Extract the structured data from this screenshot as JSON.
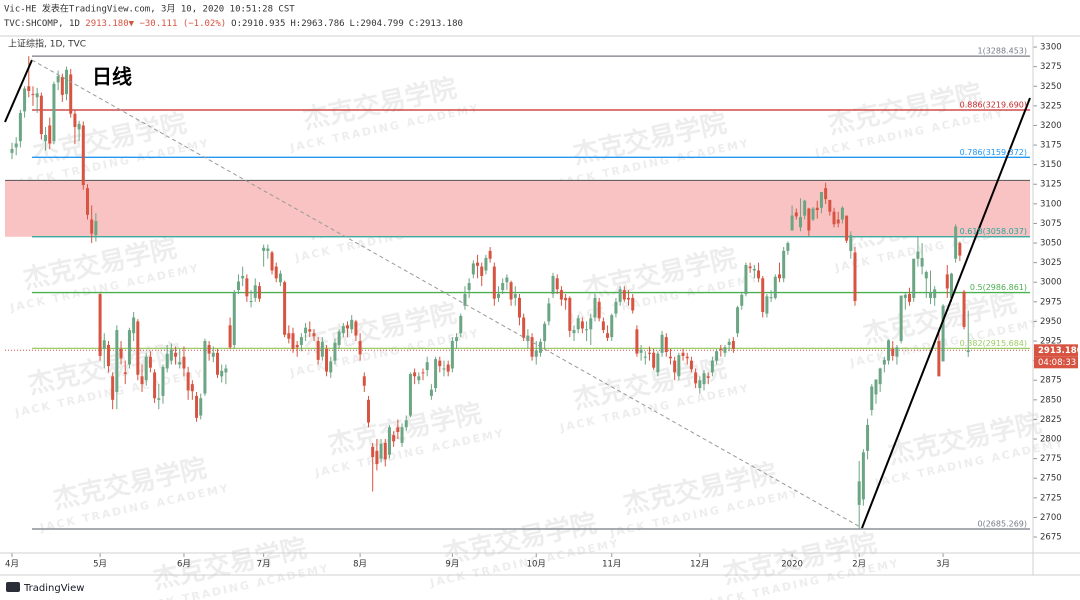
{
  "chart_data": {
    "type": "candlestick",
    "header": {
      "author": "Vic-HE 发表在TradingView.com, 3月 10, 2020 10:51:28 CST",
      "symbol": "TVC:SHCOMP, 1D",
      "quote": "2913.180▼ −30.111 (−1.02%)",
      "ohlc": [
        "O:2910.935",
        "H:2963.786",
        "L:2904.799",
        "C:2913.180"
      ]
    },
    "title": "上证综指, 1D, TVC",
    "annotation": "日线",
    "watermark": {
      "cn": "杰克交易学院",
      "en": "JACK TRADING ACADEMY"
    },
    "brand": "TradingView",
    "up_color": "#6ba583",
    "down_color": "#d75442",
    "ylim": [
      2661,
      3309
    ],
    "yticks": [
      3300,
      3275,
      3250,
      3225,
      3200,
      3175,
      3150,
      3125,
      3100,
      3075,
      3050,
      3025,
      3000,
      2975,
      2950,
      2925,
      2900,
      2875,
      2850,
      2825,
      2800,
      2775,
      2750,
      2725,
      2700,
      2675
    ],
    "xticks": [
      {
        "value": 0,
        "label": "4月"
      },
      {
        "value": 21,
        "label": "5月"
      },
      {
        "value": 41,
        "label": "6月"
      },
      {
        "value": 60,
        "label": "7月"
      },
      {
        "value": 83,
        "label": "8月"
      },
      {
        "value": 105,
        "label": "9月"
      },
      {
        "value": 125,
        "label": "10月"
      },
      {
        "value": 143,
        "label": "11月"
      },
      {
        "value": 164,
        "label": "12月"
      },
      {
        "value": 186,
        "label": "2020"
      },
      {
        "value": 202,
        "label": "2月"
      },
      {
        "value": 222,
        "label": "3月"
      }
    ],
    "fib_levels": [
      {
        "value": 3288.453,
        "label": "1(3288.453)",
        "color": "#787b86"
      },
      {
        "value": 3219.69,
        "label": "0.886(3219.690)",
        "color": "#c62828"
      },
      {
        "value": 3159.372,
        "label": "0.786(3159.372)",
        "color": "#2196f3"
      },
      {
        "value": 3058.037,
        "label": "0.618(3058.037)",
        "color": "#26a69a"
      },
      {
        "value": 2986.861,
        "label": "0.5(2986.861)",
        "color": "#4caf50"
      },
      {
        "value": 2915.684,
        "label": "0.382(2915.684)",
        "color": "#9ccc65"
      },
      {
        "value": 2685.269,
        "label": "0(2685.269)",
        "color": "#787b86"
      }
    ],
    "zone": {
      "top": 3130,
      "bottom": 3058.037,
      "color": "#f9c3c3"
    },
    "last_price": {
      "value": 2913.18,
      "label": "2913.180"
    },
    "countdown": "04:08:33",
    "candles": [
      [
        3165,
        3178,
        3157,
        3170
      ],
      [
        3172,
        3185,
        3162,
        3177
      ],
      [
        3180,
        3220,
        3172,
        3216
      ],
      [
        3218,
        3250,
        3210,
        3247
      ],
      [
        3250,
        3288.45,
        3236,
        3244
      ],
      [
        3240,
        3250,
        3225,
        3239
      ],
      [
        3236,
        3248,
        3216,
        3241
      ],
      [
        3238,
        3242,
        3182,
        3189
      ],
      [
        3180,
        3198,
        3168,
        3188
      ],
      [
        3200,
        3210,
        3170,
        3177
      ],
      [
        3180,
        3256,
        3176,
        3253
      ],
      [
        3255,
        3270,
        3245,
        3263
      ],
      [
        3262,
        3266,
        3230,
        3239
      ],
      [
        3240,
        3275,
        3232,
        3271
      ],
      [
        3265,
        3272,
        3210,
        3215
      ],
      [
        3215,
        3220,
        3176,
        3198
      ],
      [
        3195,
        3206,
        3180,
        3202
      ],
      [
        3200,
        3205,
        3118,
        3124
      ],
      [
        3120,
        3125,
        3080,
        3086
      ],
      [
        3080,
        3098,
        3050,
        3062
      ],
      [
        3060,
        3088,
        3052,
        3078
      ],
      [
        2985,
        2986,
        2900,
        2906
      ],
      [
        2915,
        2935,
        2890,
        2926
      ],
      [
        2920,
        2925,
        2885,
        2893
      ],
      [
        2880,
        2885,
        2838,
        2850
      ],
      [
        2860,
        2945,
        2838,
        2939
      ],
      [
        2915,
        2925,
        2895,
        2903
      ],
      [
        2885,
        2900,
        2870,
        2883
      ],
      [
        2895,
        2942,
        2890,
        2939
      ],
      [
        2935,
        2962,
        2925,
        2955
      ],
      [
        2950,
        2953,
        2875,
        2882
      ],
      [
        2880,
        2895,
        2860,
        2870
      ],
      [
        2875,
        2910,
        2868,
        2905
      ],
      [
        2905,
        2912,
        2885,
        2891
      ],
      [
        2885,
        2889,
        2846,
        2852
      ],
      [
        2850,
        2870,
        2838,
        2852
      ],
      [
        2855,
        2895,
        2845,
        2892
      ],
      [
        2890,
        2920,
        2885,
        2909
      ],
      [
        2900,
        2922,
        2895,
        2914
      ],
      [
        2910,
        2918,
        2895,
        2905
      ],
      [
        2895,
        2915,
        2890,
        2898
      ],
      [
        2905,
        2918,
        2880,
        2890
      ],
      [
        2885,
        2892,
        2850,
        2862
      ],
      [
        2870,
        2875,
        2850,
        2861
      ],
      [
        2855,
        2860,
        2822,
        2827
      ],
      [
        2830,
        2858,
        2825,
        2852
      ],
      [
        2858,
        2928,
        2855,
        2925
      ],
      [
        2920,
        2925,
        2900,
        2909
      ],
      [
        2905,
        2918,
        2898,
        2910
      ],
      [
        2910,
        2915,
        2878,
        2882
      ],
      [
        2880,
        2895,
        2872,
        2887
      ],
      [
        2885,
        2895,
        2870,
        2890
      ],
      [
        2945,
        2955,
        2915,
        2917
      ],
      [
        2920,
        2990,
        2915,
        2987
      ],
      [
        2990,
        3010,
        2985,
        3001
      ],
      [
        3005,
        3020,
        2995,
        3008
      ],
      [
        3005,
        3010,
        2975,
        2982
      ],
      [
        2975,
        2990,
        2968,
        2976
      ],
      [
        2980,
        3005,
        2975,
        2996
      ],
      [
        2995,
        3000,
        2975,
        2979
      ],
      [
        3040,
        3048,
        3020,
        3044
      ],
      [
        3040,
        3048,
        3030,
        3043
      ],
      [
        3038,
        3040,
        3010,
        3015
      ],
      [
        3020,
        3025,
        3000,
        3005
      ],
      [
        3000,
        3015,
        2995,
        3011
      ],
      [
        3000,
        3002,
        2930,
        2933
      ],
      [
        2935,
        2945,
        2922,
        2928
      ],
      [
        2935,
        2942,
        2910,
        2915
      ],
      [
        2920,
        2925,
        2905,
        2917
      ],
      [
        2920,
        2935,
        2912,
        2930
      ],
      [
        2935,
        2948,
        2925,
        2942
      ],
      [
        2940,
        2950,
        2930,
        2937
      ],
      [
        2935,
        2940,
        2925,
        2931
      ],
      [
        2925,
        2930,
        2895,
        2901
      ],
      [
        2905,
        2930,
        2900,
        2924
      ],
      [
        2915,
        2920,
        2880,
        2886
      ],
      [
        2885,
        2905,
        2878,
        2899
      ],
      [
        2900,
        2928,
        2895,
        2923
      ],
      [
        2920,
        2940,
        2915,
        2937
      ],
      [
        2935,
        2948,
        2930,
        2944
      ],
      [
        2945,
        2950,
        2930,
        2941
      ],
      [
        2940,
        2958,
        2935,
        2952
      ],
      [
        2950,
        2952,
        2925,
        2932
      ],
      [
        2925,
        2935,
        2900,
        2908
      ],
      [
        2880,
        2885,
        2860,
        2868
      ],
      [
        2850,
        2855,
        2815,
        2821
      ],
      [
        2790,
        2795,
        2733,
        2777
      ],
      [
        2785,
        2800,
        2760,
        2768
      ],
      [
        2775,
        2800,
        2770,
        2794
      ],
      [
        2795,
        2800,
        2765,
        2774
      ],
      [
        2780,
        2818,
        2775,
        2815
      ],
      [
        2805,
        2810,
        2790,
        2797
      ],
      [
        2815,
        2825,
        2800,
        2809
      ],
      [
        2795,
        2820,
        2790,
        2815
      ],
      [
        2815,
        2830,
        2810,
        2824
      ],
      [
        2830,
        2885,
        2828,
        2883
      ],
      [
        2885,
        2890,
        2870,
        2880
      ],
      [
        2875,
        2885,
        2870,
        2880
      ],
      [
        2885,
        2890,
        2875,
        2884
      ],
      [
        2888,
        2905,
        2880,
        2898
      ],
      [
        2855,
        2870,
        2850,
        2863
      ],
      [
        2865,
        2905,
        2860,
        2902
      ],
      [
        2900,
        2905,
        2885,
        2893
      ],
      [
        2890,
        2900,
        2880,
        2890
      ],
      [
        2895,
        2900,
        2880,
        2886
      ],
      [
        2890,
        2930,
        2885,
        2925
      ],
      [
        2925,
        2935,
        2915,
        2930
      ],
      [
        2935,
        2960,
        2930,
        2957
      ],
      [
        2970,
        2995,
        2965,
        2985
      ],
      [
        2990,
        3005,
        2980,
        2999
      ],
      [
        3010,
        3028,
        3005,
        3024
      ],
      [
        3025,
        3035,
        3005,
        3021
      ],
      [
        3020,
        3025,
        2995,
        3008
      ],
      [
        3015,
        3035,
        3010,
        3031
      ],
      [
        3040,
        3045,
        3025,
        3030
      ],
      [
        3020,
        3025,
        2970,
        2979
      ],
      [
        2980,
        2995,
        2975,
        2985
      ],
      [
        2990,
        3005,
        2985,
        2999
      ],
      [
        3000,
        3010,
        2990,
        3006
      ],
      [
        3000,
        3002,
        2970,
        2978
      ],
      [
        2980,
        2995,
        2970,
        2985
      ],
      [
        2980,
        2985,
        2945,
        2955
      ],
      [
        2955,
        2960,
        2925,
        2929
      ],
      [
        2925,
        2940,
        2915,
        2932
      ],
      [
        2930,
        2935,
        2900,
        2905
      ],
      [
        2905,
        2925,
        2895,
        2913
      ],
      [
        2910,
        2928,
        2905,
        2924
      ],
      [
        2925,
        2950,
        2915,
        2947
      ],
      [
        2950,
        2980,
        2945,
        2973
      ],
      [
        2985,
        3012,
        2980,
        3008
      ],
      [
        3005,
        3010,
        2985,
        2991
      ],
      [
        2990,
        2995,
        2970,
        2978
      ],
      [
        2980,
        2985,
        2965,
        2977
      ],
      [
        2980,
        2982,
        2930,
        2938
      ],
      [
        2935,
        2945,
        2925,
        2939
      ],
      [
        2940,
        2958,
        2935,
        2954
      ],
      [
        2950,
        2955,
        2935,
        2941
      ],
      [
        2940,
        2950,
        2925,
        2940
      ],
      [
        2940,
        2960,
        2920,
        2954
      ],
      [
        2955,
        2985,
        2950,
        2980
      ],
      [
        2975,
        2980,
        2950,
        2954
      ],
      [
        2950,
        2955,
        2935,
        2939
      ],
      [
        2935,
        2945,
        2925,
        2929
      ],
      [
        2930,
        2960,
        2925,
        2958
      ],
      [
        2960,
        2980,
        2955,
        2975
      ],
      [
        2975,
        2995,
        2970,
        2991
      ],
      [
        2990,
        2995,
        2975,
        2978
      ],
      [
        2980,
        2990,
        2970,
        2978
      ],
      [
        2980,
        2985,
        2960,
        2964
      ],
      [
        2940,
        2945,
        2905,
        2909
      ],
      [
        2910,
        2920,
        2900,
        2914
      ],
      [
        2905,
        2912,
        2895,
        2905
      ],
      [
        2910,
        2918,
        2900,
        2909
      ],
      [
        2910,
        2915,
        2888,
        2891
      ],
      [
        2885,
        2912,
        2880,
        2909
      ],
      [
        2910,
        2938,
        2905,
        2933
      ],
      [
        2930,
        2935,
        2905,
        2911
      ],
      [
        2905,
        2915,
        2895,
        2903
      ],
      [
        2900,
        2905,
        2875,
        2885
      ],
      [
        2880,
        2910,
        2875,
        2907
      ],
      [
        2910,
        2915,
        2900,
        2906
      ],
      [
        2905,
        2910,
        2895,
        2903
      ],
      [
        2900,
        2905,
        2885,
        2889
      ],
      [
        2885,
        2890,
        2865,
        2871
      ],
      [
        2865,
        2880,
        2858,
        2875
      ],
      [
        2870,
        2888,
        2862,
        2884
      ],
      [
        2880,
        2885,
        2870,
        2878
      ],
      [
        2885,
        2905,
        2880,
        2900
      ],
      [
        2900,
        2915,
        2895,
        2912
      ],
      [
        2915,
        2920,
        2905,
        2914
      ],
      [
        2910,
        2920,
        2905,
        2917
      ],
      [
        2920,
        2928,
        2912,
        2924
      ],
      [
        2925,
        2930,
        2910,
        2915
      ],
      [
        2935,
        2970,
        2930,
        2968
      ],
      [
        2970,
        2988,
        2965,
        2984
      ],
      [
        2985,
        3025,
        2982,
        3022
      ],
      [
        3020,
        3025,
        3012,
        3018
      ],
      [
        3015,
        3022,
        3005,
        3017
      ],
      [
        3015,
        3025,
        3000,
        3005
      ],
      [
        3005,
        3008,
        2955,
        2962
      ],
      [
        2960,
        2985,
        2955,
        2982
      ],
      [
        2980,
        2990,
        2975,
        2981
      ],
      [
        2980,
        3010,
        2978,
        3007
      ],
      [
        3010,
        3025,
        3000,
        3005
      ],
      [
        3005,
        3045,
        3000,
        3040
      ],
      [
        3040,
        3052,
        3035,
        3050
      ],
      [
        3066,
        3098,
        3066,
        3085
      ],
      [
        3089,
        3094,
        3080,
        3084
      ],
      [
        3070,
        3107,
        3065,
        3083
      ],
      [
        3085,
        3105,
        3080,
        3104
      ],
      [
        3094,
        3095,
        3059,
        3066
      ],
      [
        3080,
        3096,
        3078,
        3094
      ],
      [
        3095,
        3104,
        3081,
        3092
      ],
      [
        3095,
        3115,
        3088,
        3115
      ],
      [
        3120,
        3127,
        3100,
        3106
      ],
      [
        3105,
        3105,
        3085,
        3090
      ],
      [
        3090,
        3095,
        3070,
        3074
      ],
      [
        3080,
        3090,
        3070,
        3075
      ],
      [
        3080,
        3097,
        3075,
        3095
      ],
      [
        3085,
        3085,
        3050,
        3053
      ],
      [
        3040,
        3065,
        3030,
        3060
      ],
      [
        3038,
        3045,
        2970,
        2976
      ],
      [
        2716,
        2772,
        2685.27,
        2746
      ],
      [
        2723,
        2787,
        2715,
        2783
      ],
      [
        2785,
        2826,
        2774,
        2818
      ],
      [
        2837,
        2870,
        2830,
        2867
      ],
      [
        2857,
        2876,
        2845,
        2876
      ],
      [
        2870,
        2891,
        2860,
        2890
      ],
      [
        2895,
        2905,
        2885,
        2901
      ],
      [
        2900,
        2927,
        2895,
        2926
      ],
      [
        2915,
        2925,
        2900,
        2906
      ],
      [
        2905,
        2920,
        2895,
        2917
      ],
      [
        2925,
        2983,
        2922,
        2983
      ],
      [
        2980,
        2986,
        2965,
        2984
      ],
      [
        2985,
        2993,
        2970,
        2975
      ],
      [
        2980,
        3030,
        2975,
        3030
      ],
      [
        3030,
        3058,
        3020,
        3039
      ],
      [
        3020,
        3050,
        3010,
        3031
      ],
      [
        3005,
        3015,
        2980,
        3013
      ],
      [
        2980,
        3015,
        2972,
        2987
      ],
      [
        2980,
        2995,
        2970,
        2991
      ],
      [
        2925,
        2940,
        2880,
        2880
      ],
      [
        2899,
        2972,
        2899,
        2970
      ],
      [
        3010,
        3022,
        2980,
        2992
      ],
      [
        2980,
        3012,
        2975,
        3011
      ],
      [
        3030,
        3074,
        3025,
        3071
      ],
      [
        3050,
        3052,
        3027,
        3034
      ],
      [
        2988,
        2990,
        2940,
        2943
      ],
      [
        2910.935,
        2963.786,
        2904.799,
        2913.18
      ]
    ]
  }
}
